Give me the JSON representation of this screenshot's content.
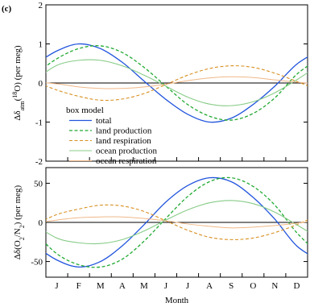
{
  "panel_label": "(c)",
  "x_axis": {
    "label": "Month",
    "ticks": [
      "J",
      "F",
      "M",
      "A",
      "M",
      "J",
      "J",
      "A",
      "S",
      "O",
      "N",
      "D"
    ]
  },
  "chart_data": [
    {
      "type": "line",
      "title": "",
      "ylabel_parts": {
        "prefix": "Δδ",
        "sub": "atm",
        "sup": "18",
        "suffix": "O)  (per meg)",
        "paren": "("
      },
      "ylim": [
        -2,
        2
      ],
      "yticks": [
        -2,
        -1,
        0,
        1,
        2
      ],
      "x": [
        "J",
        "F",
        "M",
        "A",
        "M",
        "J",
        "J",
        "A",
        "S",
        "O",
        "N",
        "D"
      ],
      "series": [
        {
          "name": "total",
          "color": "#2255dd",
          "dash": "",
          "width": 1.3,
          "values": [
            0.82,
            1.0,
            0.88,
            0.53,
            0.05,
            -0.42,
            -0.8,
            -1.0,
            -0.9,
            -0.55,
            -0.08,
            0.48
          ]
        },
        {
          "name": "land production",
          "color": "#22aa33",
          "dash": "4,2.5",
          "width": 1.3,
          "values": [
            0.62,
            0.88,
            0.95,
            0.78,
            0.4,
            -0.08,
            -0.55,
            -0.85,
            -0.95,
            -0.78,
            -0.38,
            0.22
          ]
        },
        {
          "name": "land respiration",
          "color": "#d89020",
          "dash": "4,2.5",
          "width": 1.1,
          "values": [
            -0.18,
            -0.34,
            -0.44,
            -0.41,
            -0.27,
            -0.04,
            0.2,
            0.37,
            0.44,
            0.4,
            0.25,
            0.04
          ]
        },
        {
          "name": "ocean production",
          "color": "#88cc88",
          "dash": "",
          "width": 1.1,
          "values": [
            0.45,
            0.58,
            0.58,
            0.44,
            0.2,
            -0.08,
            -0.36,
            -0.54,
            -0.58,
            -0.48,
            -0.25,
            0.08
          ]
        },
        {
          "name": "ocean respiration",
          "color": "#f0b888",
          "dash": "",
          "width": 1.0,
          "values": [
            -0.02,
            -0.1,
            -0.14,
            -0.14,
            -0.1,
            -0.03,
            0.06,
            0.13,
            0.16,
            0.14,
            0.08,
            0.02
          ]
        }
      ],
      "legend": {
        "title": "box model",
        "entries": [
          "total",
          "land production",
          "land respiration",
          "ocean production",
          "ocean respiration"
        ]
      }
    },
    {
      "type": "line",
      "title": "",
      "ylabel_parts": {
        "prefix": "Δδ(O",
        "sub1": "2",
        "mid": "/N",
        "sub2": "2",
        "suffix": ")  (per meg)"
      },
      "ylim": [
        -70,
        70
      ],
      "yticks": [
        -50,
        0,
        50
      ],
      "x": [
        "J",
        "F",
        "M",
        "A",
        "M",
        "J",
        "J",
        "A",
        "S",
        "O",
        "N",
        "D"
      ],
      "series": [
        {
          "name": "total",
          "color": "#2255dd",
          "dash": "",
          "width": 1.3,
          "values": [
            -48,
            -57,
            -50,
            -30,
            -3,
            26,
            47,
            57,
            52,
            32,
            4,
            -30
          ]
        },
        {
          "name": "land production",
          "color": "#22aa33",
          "dash": "4,2.5",
          "width": 1.3,
          "values": [
            -40,
            -54,
            -57,
            -47,
            -24,
            5,
            33,
            52,
            57,
            46,
            22,
            -13
          ]
        },
        {
          "name": "land respiration",
          "color": "#d89020",
          "dash": "4,2.5",
          "width": 1.1,
          "values": [
            10,
            17,
            22,
            21,
            14,
            2,
            -10,
            -19,
            -22,
            -20,
            -13,
            -3
          ]
        },
        {
          "name": "ocean production",
          "color": "#88cc88",
          "dash": "",
          "width": 1.1,
          "values": [
            -20,
            -26,
            -27,
            -22,
            -11,
            3,
            16,
            25,
            28,
            24,
            13,
            -3
          ]
        },
        {
          "name": "ocean respiration",
          "color": "#f0b888",
          "dash": "",
          "width": 1.0,
          "values": [
            3,
            6,
            7,
            7,
            5,
            2,
            -2,
            -5,
            -7,
            -6,
            -4,
            -1
          ]
        }
      ]
    }
  ]
}
